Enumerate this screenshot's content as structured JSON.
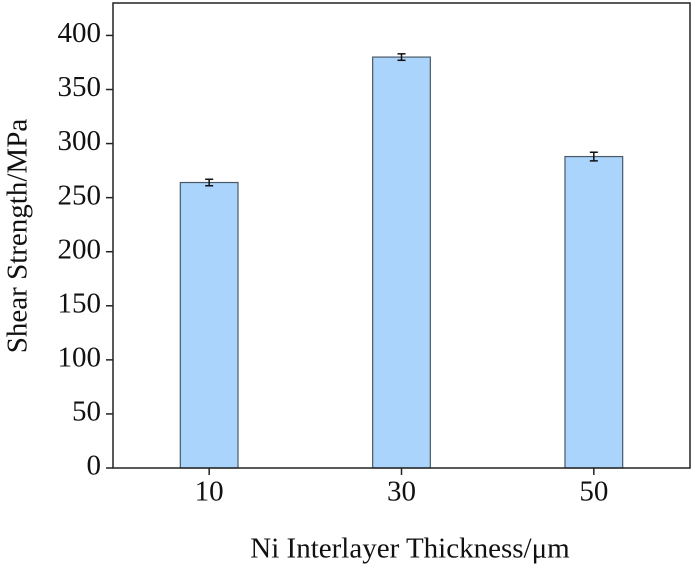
{
  "chart_data": {
    "type": "bar",
    "x_label": "Ni Interlayer Thickness/μm",
    "y_label": "Shear Strength/MPa",
    "categories": [
      "10",
      "30",
      "50"
    ],
    "values": [
      264,
      380,
      288
    ],
    "errors": [
      3,
      3,
      4
    ],
    "color": "#aad4fb",
    "ylim": [
      0,
      430
    ],
    "yticks": [
      0,
      50,
      100,
      150,
      200,
      250,
      300,
      350,
      400
    ],
    "grid": false
  }
}
